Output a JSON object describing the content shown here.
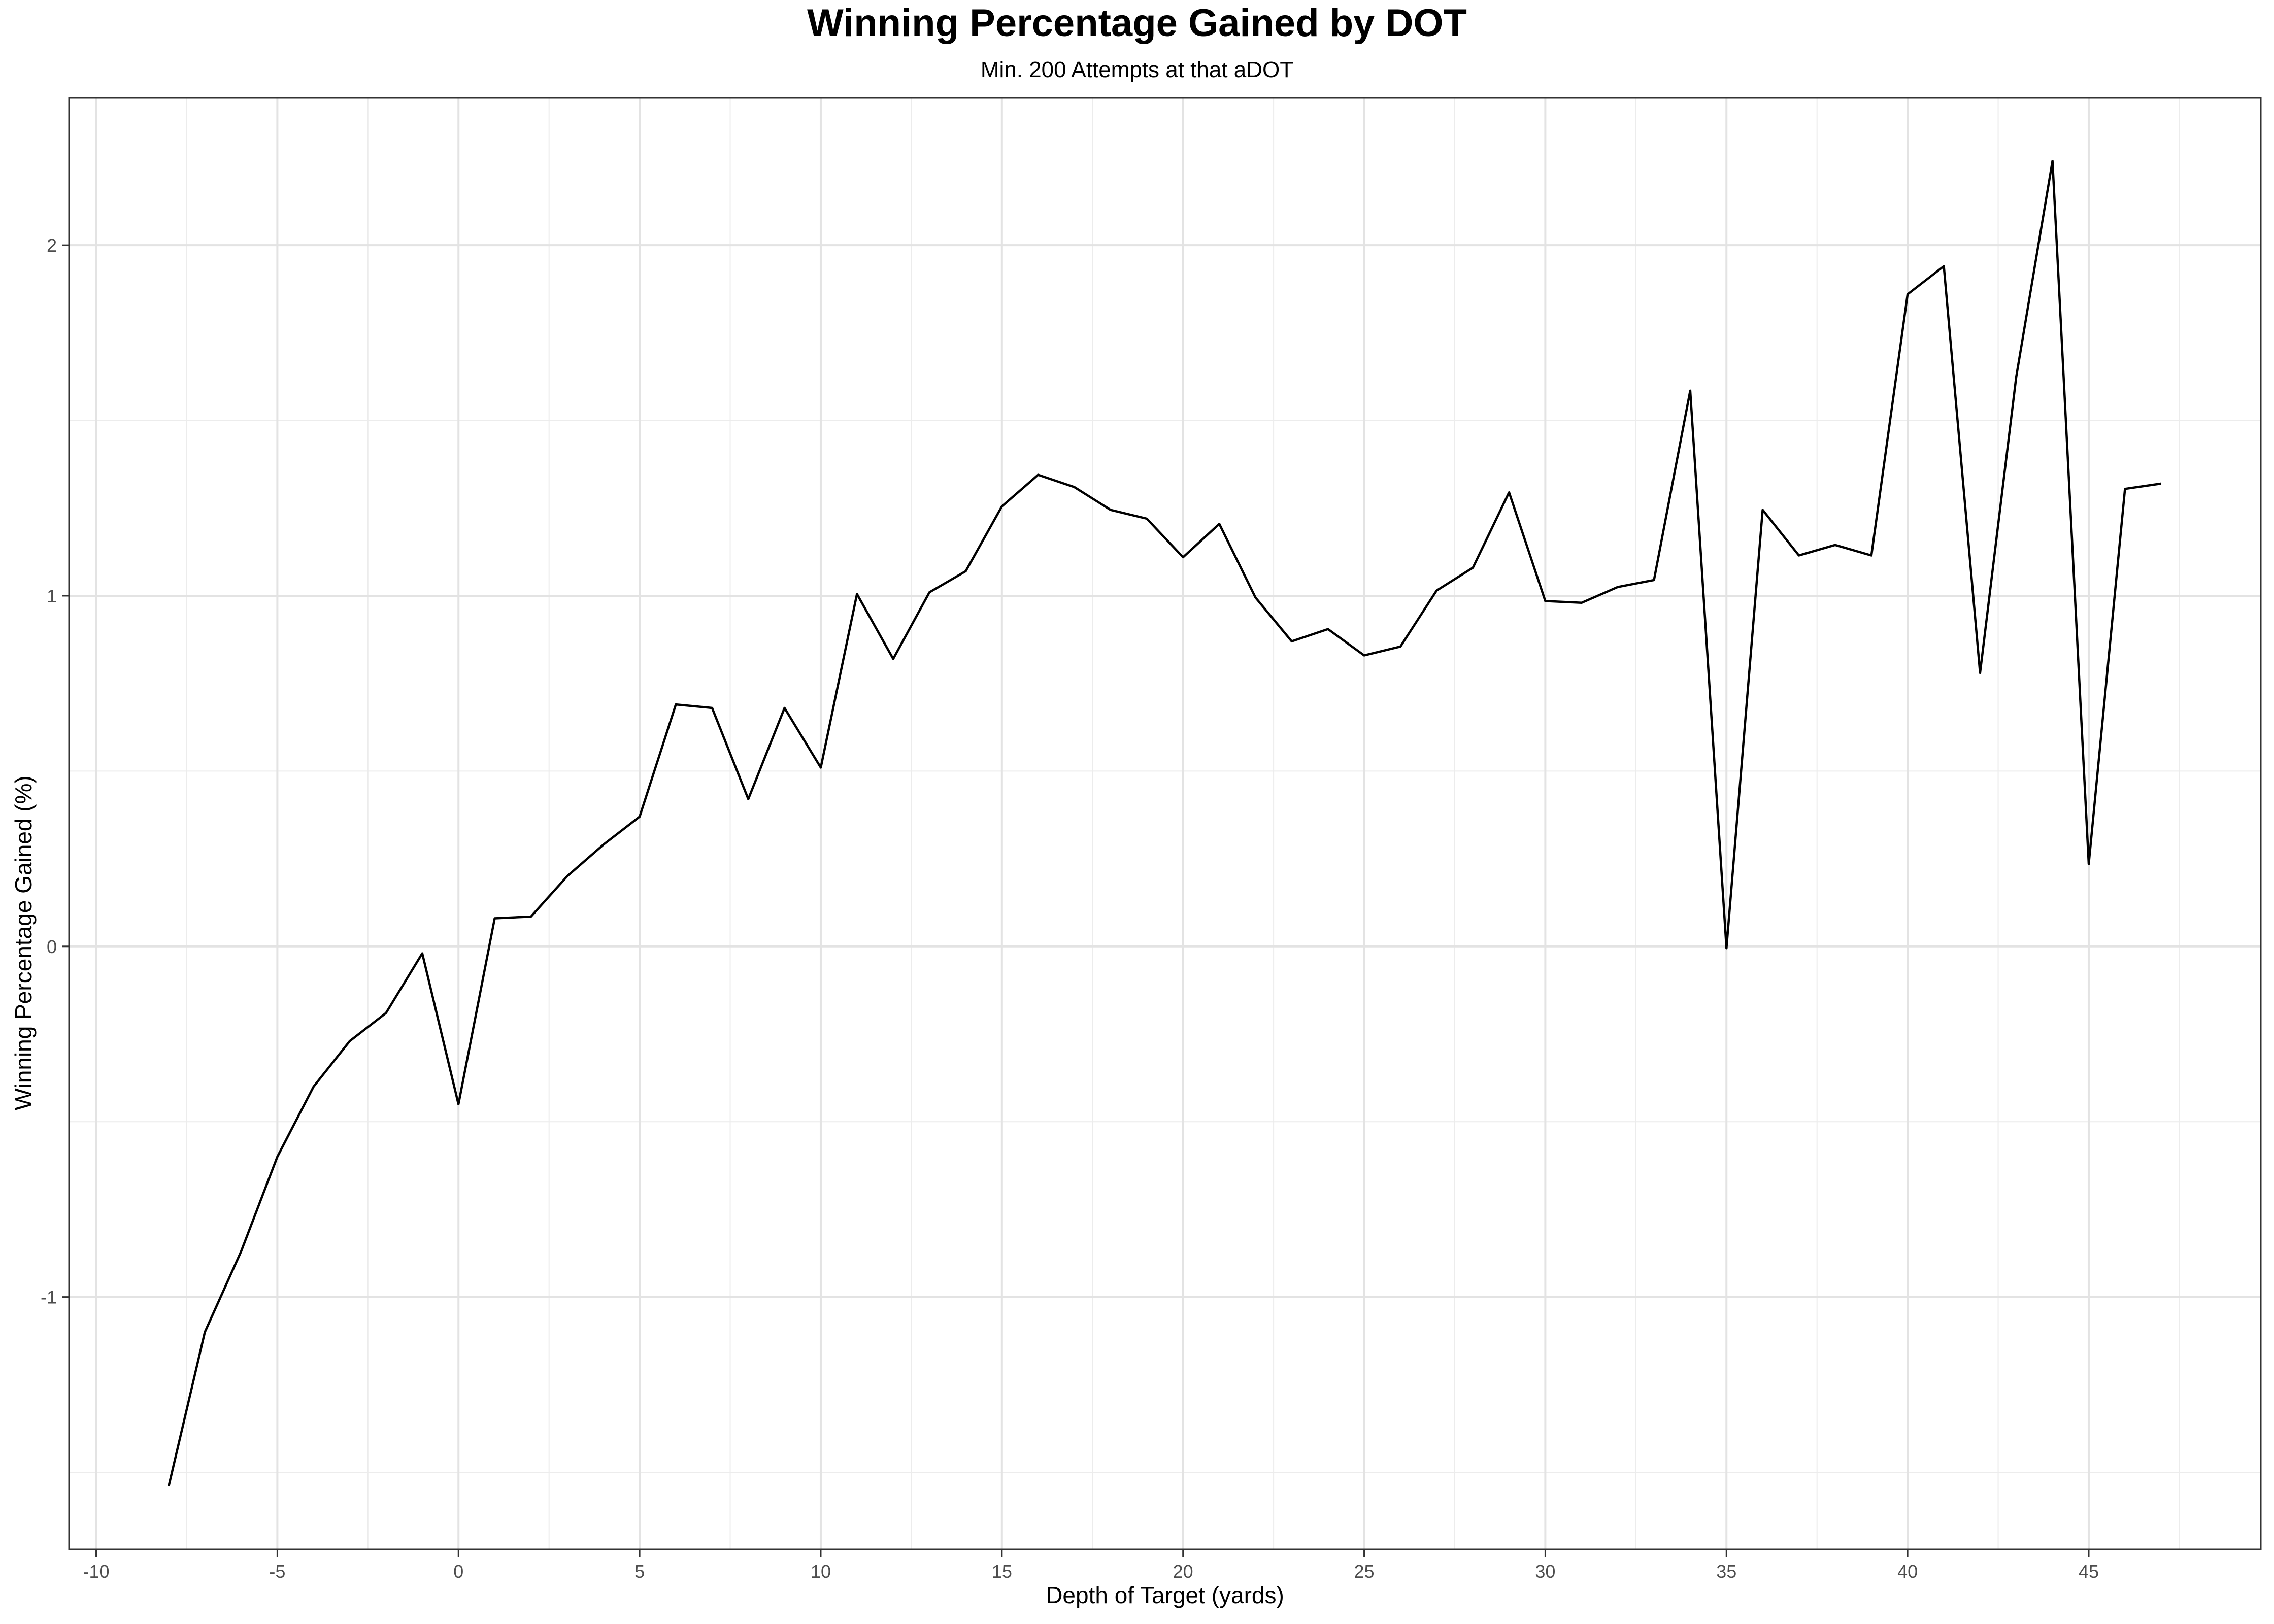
{
  "chart_data": {
    "type": "line",
    "title": "Winning Percentage Gained by DOT",
    "subtitle": "Min. 200 Attempts at that aDOT",
    "xlabel": "Depth of Target (yards)",
    "ylabel": "Winning Percentage Gained (%)",
    "xlim": [
      -10.75,
      49.75
    ],
    "ylim": [
      -1.72,
      2.42
    ],
    "x_ticks": [
      -10,
      -5,
      0,
      5,
      10,
      15,
      20,
      25,
      30,
      35,
      40,
      45
    ],
    "x_tick_labels": [
      "-10",
      "-5",
      "0",
      "5",
      "10",
      "15",
      "20",
      "25",
      "30",
      "35",
      "40",
      "45"
    ],
    "y_ticks": [
      -1,
      0,
      1,
      2
    ],
    "y_tick_labels": [
      "-1",
      "0",
      "1",
      "2"
    ],
    "grid": true,
    "series": [
      {
        "line_color": "#000000",
        "x": [
          -8,
          -7,
          -6,
          -5,
          -4,
          -3,
          -2,
          -1,
          0,
          1,
          2,
          3,
          4,
          5,
          6,
          7,
          8,
          9,
          10,
          11,
          12,
          13,
          14,
          15,
          16,
          17,
          18,
          19,
          20,
          21,
          22,
          23,
          24,
          25,
          26,
          27,
          28,
          29,
          30,
          31,
          32,
          33,
          34,
          35,
          36,
          37,
          38,
          39,
          40,
          41,
          42,
          43,
          44,
          45,
          46,
          47
        ],
        "y": [
          -1.54,
          -1.1,
          -0.87,
          -0.6,
          -0.4,
          -0.27,
          -0.19,
          -0.02,
          -0.45,
          0.08,
          0.085,
          0.2,
          0.29,
          0.37,
          0.69,
          0.68,
          0.42,
          0.68,
          0.51,
          1.005,
          0.82,
          1.01,
          1.07,
          1.255,
          1.345,
          1.31,
          1.245,
          1.22,
          1.11,
          1.205,
          0.995,
          0.87,
          0.905,
          0.83,
          0.855,
          1.015,
          1.08,
          1.295,
          0.985,
          0.98,
          1.025,
          1.045,
          1.585,
          -0.005,
          1.245,
          1.115,
          1.145,
          1.115,
          1.86,
          1.94,
          0.78,
          1.625,
          2.24,
          0.235,
          1.305,
          1.32
        ]
      }
    ]
  }
}
